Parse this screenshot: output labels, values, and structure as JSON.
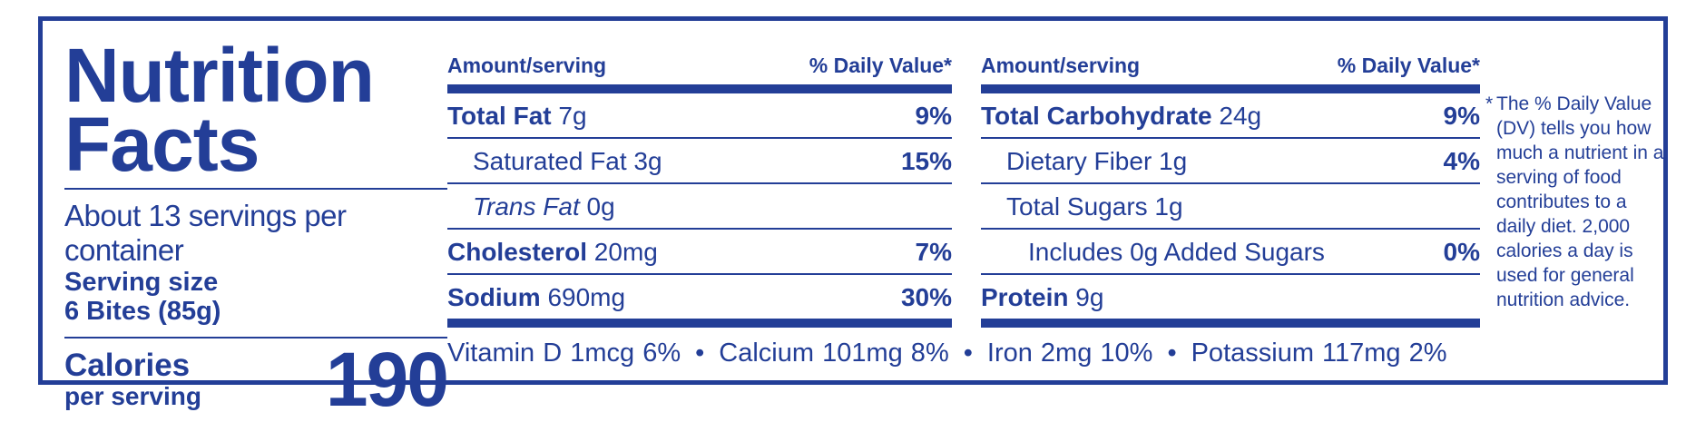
{
  "title": "Nutrition Facts",
  "servings_per_container": "About 13 servings per container",
  "serving_size_label": "Serving size",
  "serving_size_value": "6 Bites (85g)",
  "calories_label": "Calories",
  "calories_sub": "per serving",
  "calories_value": "190",
  "header": {
    "amount": "Amount/serving",
    "dv": "% Daily Value*"
  },
  "col1": {
    "total_fat": {
      "label": "Total Fat",
      "amount": " 7g",
      "pct": "9%"
    },
    "saturated_fat": {
      "label": "Saturated Fat 3g",
      "pct": "15%"
    },
    "trans_fat": {
      "label": "Trans Fat",
      "amount": " 0g"
    },
    "cholesterol": {
      "label": "Cholesterol",
      "amount": " 20mg",
      "pct": "7%"
    },
    "sodium": {
      "label": "Sodium",
      "amount": " 690mg",
      "pct": "30%"
    }
  },
  "col2": {
    "total_carb": {
      "label": "Total Carbohydrate",
      "amount": " 24g",
      "pct": "9%"
    },
    "fiber": {
      "label": "Dietary Fiber 1g",
      "pct": "4%"
    },
    "sugars": {
      "label": "Total Sugars 1g"
    },
    "added_sugars": {
      "label": "Includes 0g Added Sugars",
      "pct": "0%"
    },
    "protein": {
      "label": "Protein",
      "amount": " 9g"
    }
  },
  "vitamins": {
    "vit_d": "Vitamin D 1mcg 6%",
    "calcium": "Calcium 101mg 8%",
    "iron": "Iron 2mg 10%",
    "potassium": "Potassium 117mg 2%",
    "separator": "•"
  },
  "footnote": {
    "asterisk": "*",
    "text": "The % Daily Value (DV) tells you how much a nutrient in a serving of food contributes to a daily diet. 2,000 calories a day is used for general nutrition advice."
  },
  "colors": {
    "ink": "#233e97",
    "background": "#ffffff"
  }
}
